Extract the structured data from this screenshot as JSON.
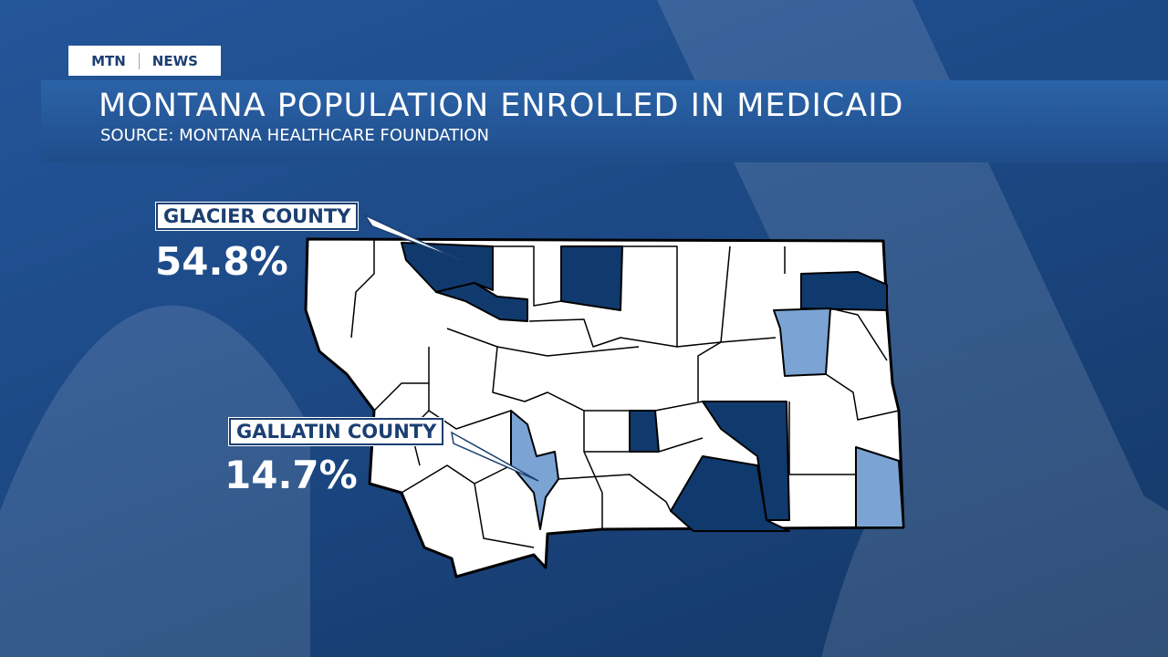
{
  "header": {
    "brand": [
      "MTN",
      "NEWS"
    ],
    "title": "MONTANA POPULATION ENROLLED IN MEDICAID",
    "source": "SOURCE: MONTANA HEALTHCARE FOUNDATION"
  },
  "callouts": [
    {
      "label": "GLACIER COUNTY",
      "value": "54.8%"
    },
    {
      "label": "GALLATIN COUNTY",
      "value": "14.7%"
    }
  ]
}
